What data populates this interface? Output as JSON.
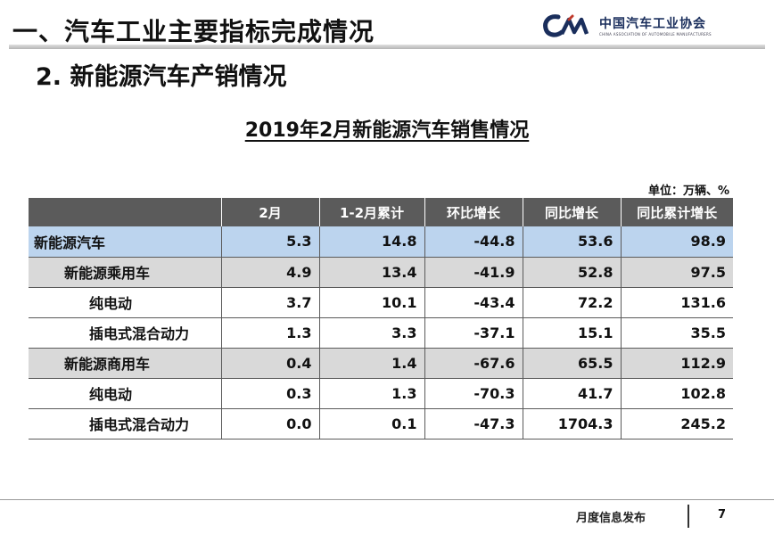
{
  "header": {
    "title": "一、汽车工业主要指标完成情况",
    "logo_cn": "中国汽车工业协会",
    "logo_en": "CHINA ASSOCIATION OF AUTOMOBILE MANUFACTURERS"
  },
  "section_title": "2. 新能源汽车产销情况",
  "table_title": "2019年2月新能源汽车销售情况",
  "unit_label": "单位：万辆、%",
  "table": {
    "columns": [
      "",
      "2月",
      "1-2月累计",
      "环比增长",
      "同比增长",
      "同比累计增长"
    ],
    "rows": [
      {
        "level": 0,
        "name": "新能源汽车",
        "values": [
          "5.3",
          "14.8",
          "-44.8",
          "53.6",
          "98.9"
        ]
      },
      {
        "level": 1,
        "name": "新能源乘用车",
        "values": [
          "4.9",
          "13.4",
          "-41.9",
          "52.8",
          "97.5"
        ]
      },
      {
        "level": 2,
        "name": "纯电动",
        "values": [
          "3.7",
          "10.1",
          "-43.4",
          "72.2",
          "131.6"
        ]
      },
      {
        "level": 2,
        "name": "插电式混合动力",
        "values": [
          "1.3",
          "3.3",
          "-37.1",
          "15.1",
          "35.5"
        ]
      },
      {
        "level": 1,
        "name": "新能源商用车",
        "values": [
          "0.4",
          "1.4",
          "-67.6",
          "65.5",
          "112.9"
        ]
      },
      {
        "level": 2,
        "name": "纯电动",
        "values": [
          "0.3",
          "1.3",
          "-70.3",
          "41.7",
          "102.8"
        ]
      },
      {
        "level": 2,
        "name": "插电式混合动力",
        "values": [
          "0.0",
          "0.1",
          "-47.3",
          "1704.3",
          "245.2"
        ]
      }
    ]
  },
  "footer": {
    "label": "月度信息发布",
    "page_number": "7"
  },
  "colors": {
    "header_row": "#5b5b5b",
    "row_level0": "#bcd4ee",
    "row_level1": "#d9d9d9",
    "row_level2": "#ffffff",
    "logo_blue": "#1a2e5c"
  }
}
